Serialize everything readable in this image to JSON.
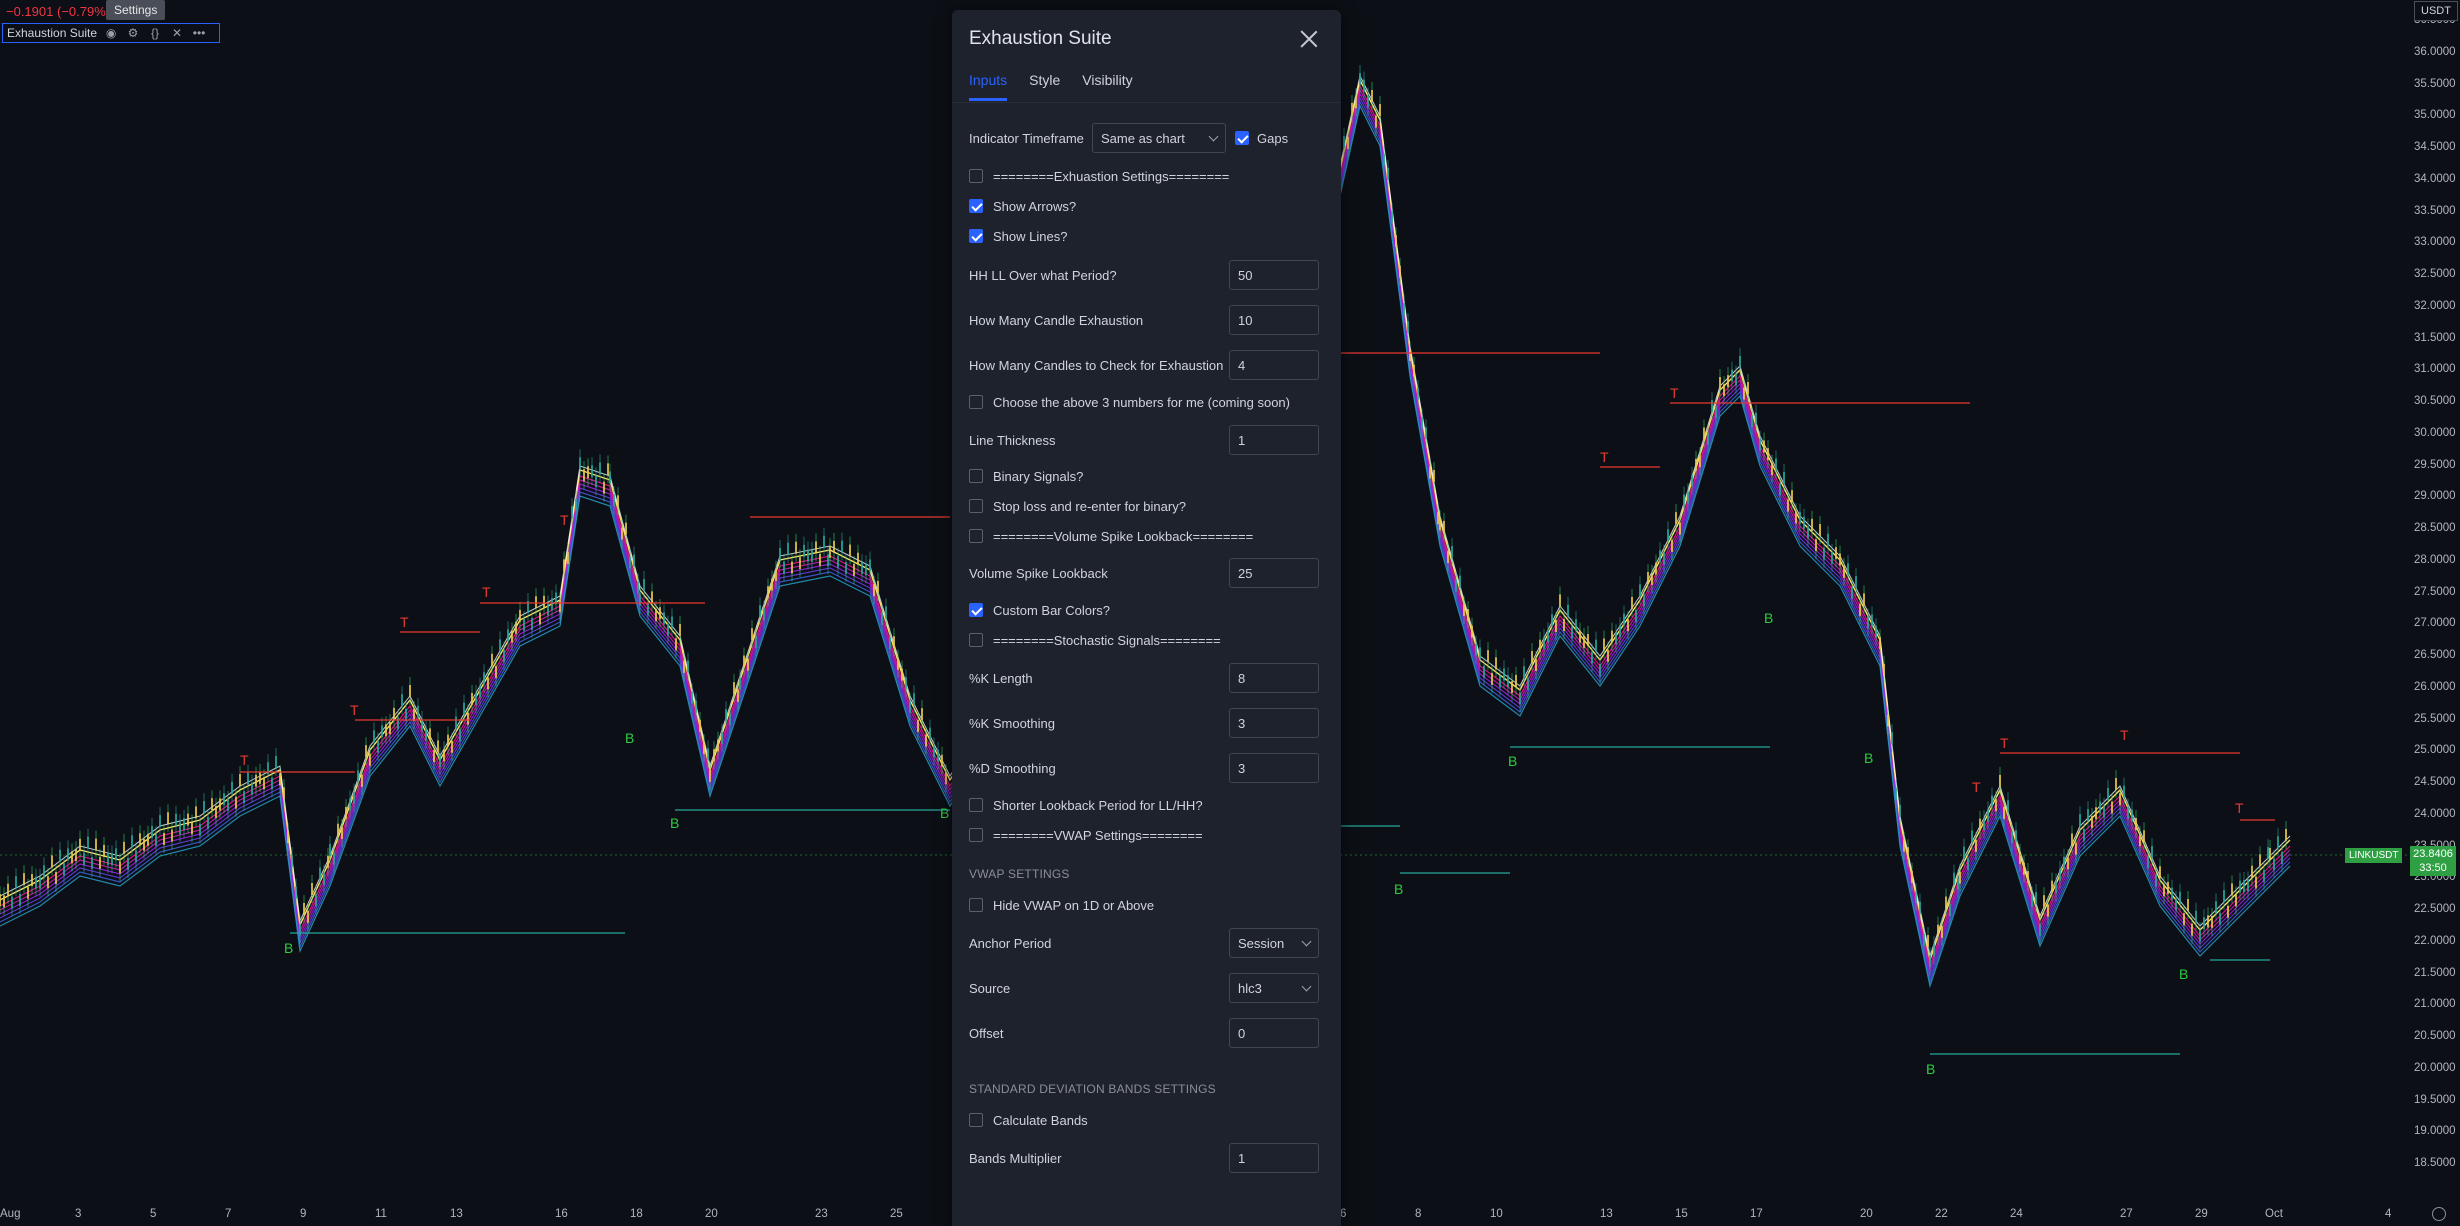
{
  "header": {
    "change_text": "−0.1901 (−0.79%)",
    "settings_tooltip": "Settings",
    "indicator_name": "Exhaustion Suite",
    "currency": "USDT"
  },
  "price_axis": {
    "labels": [
      "36.5000",
      "36.0000",
      "35.5000",
      "35.0000",
      "34.5000",
      "34.0000",
      "33.5000",
      "33.0000",
      "32.5000",
      "32.0000",
      "31.5000",
      "31.0000",
      "30.5000",
      "30.0000",
      "29.5000",
      "29.0000",
      "28.5000",
      "28.0000",
      "27.5000",
      "27.0000",
      "26.5000",
      "26.0000",
      "25.5000",
      "25.0000",
      "24.5000",
      "24.0000",
      "23.5000",
      "23.0000",
      "22.5000",
      "22.0000",
      "21.5000",
      "21.0000",
      "20.5000",
      "20.0000",
      "19.5000",
      "19.0000",
      "18.5000"
    ],
    "ticker": "LINKUSDT",
    "last_price": "23.8406",
    "countdown": "33:50"
  },
  "date_axis": {
    "labels": [
      "Aug",
      "3",
      "5",
      "7",
      "9",
      "11",
      "13",
      "16",
      "18",
      "20",
      "23",
      "25",
      "6",
      "8",
      "10",
      "13",
      "15",
      "17",
      "20",
      "22",
      "24",
      "27",
      "29",
      "Oct",
      "4"
    ]
  },
  "signals": {
    "top": "T",
    "bottom": "B"
  },
  "colors": {
    "bull": "#26a69a",
    "bear": "#f23645",
    "accent": "#2962ff",
    "signal_top": "#e53935",
    "signal_bottom": "#2ecc40"
  },
  "dialog": {
    "title": "Exhaustion Suite",
    "tabs": [
      "Inputs",
      "Style",
      "Visibility"
    ],
    "timeframe_label": "Indicator Timeframe",
    "timeframe_value": "Same as chart",
    "gaps_label": "Gaps",
    "rows": [
      {
        "kind": "check",
        "label": "========Exhuastion Settings========",
        "checked": false
      },
      {
        "kind": "check",
        "label": "Show Arrows?",
        "checked": true
      },
      {
        "kind": "check",
        "label": "Show Lines?",
        "checked": true
      },
      {
        "kind": "input",
        "label": "HH LL Over what Period?",
        "value": "50"
      },
      {
        "kind": "input",
        "label": "How Many Candle Exhaustion",
        "value": "10"
      },
      {
        "kind": "input",
        "label": "How Many Candles to Check for Exhaustion",
        "value": "4"
      },
      {
        "kind": "check",
        "label": "Choose the above 3 numbers for me (coming soon)",
        "checked": false
      },
      {
        "kind": "input",
        "label": "Line Thickness",
        "value": "1"
      },
      {
        "kind": "check",
        "label": "Binary Signals?",
        "checked": false
      },
      {
        "kind": "check",
        "label": "Stop loss and re-enter for binary?",
        "checked": false
      },
      {
        "kind": "check",
        "label": "========Volume Spike Lookback========",
        "checked": false
      },
      {
        "kind": "input",
        "label": "Volume Spike Lookback",
        "value": "25"
      },
      {
        "kind": "check",
        "label": "Custom Bar Colors?",
        "checked": true
      },
      {
        "kind": "check",
        "label": "========Stochastic Signals========",
        "checked": false
      },
      {
        "kind": "input",
        "label": "%K Length",
        "value": "8"
      },
      {
        "kind": "input",
        "label": "%K Smoothing",
        "value": "3"
      },
      {
        "kind": "input",
        "label": "%D Smoothing",
        "value": "3"
      },
      {
        "kind": "check",
        "label": "Shorter Lookback Period for LL/HH?",
        "checked": false
      },
      {
        "kind": "check",
        "label": "========VWAP Settings========",
        "checked": false
      },
      {
        "kind": "section",
        "label": "VWAP SETTINGS"
      },
      {
        "kind": "check",
        "label": "Hide VWAP on 1D or Above",
        "checked": false
      },
      {
        "kind": "select",
        "label": "Anchor Period",
        "value": "Session"
      },
      {
        "kind": "select",
        "label": "Source",
        "value": "hlc3"
      },
      {
        "kind": "input",
        "label": "Offset",
        "value": "0"
      },
      {
        "kind": "section",
        "label": "STANDARD DEVIATION BANDS SETTINGS"
      },
      {
        "kind": "check",
        "label": "Calculate Bands",
        "checked": false
      },
      {
        "kind": "input",
        "label": "Bands Multiplier",
        "value": "1"
      }
    ]
  }
}
